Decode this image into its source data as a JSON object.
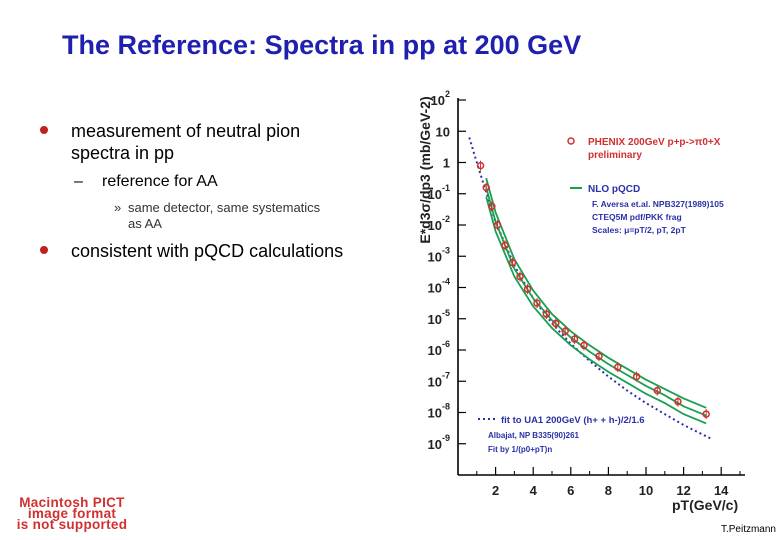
{
  "slide": {
    "title": "The Reference: Spectra in pp at 200 GeV",
    "bullets": [
      {
        "text_line1": "measurement of neutral pion",
        "text_line2": "spectra in pp",
        "sub": {
          "dash": "–",
          "text": "reference for AA",
          "subsub": {
            "marker": "»",
            "line1": "same detector, same systematics",
            "line2": "as AA"
          }
        }
      },
      {
        "text": "consistent with pQCD calculations"
      }
    ],
    "pict_warning": [
      "Macintosh PICT",
      "image format",
      "is not supported"
    ],
    "credit": "T.Peitzmann"
  },
  "chart_data": {
    "type": "scatter",
    "xlabel": "pT(GeV/c)",
    "ylabel": "E*d3σ/dp3 (mb/GeV-2)",
    "xlim": [
      0,
      15
    ],
    "ylim_log10": [
      -10,
      2
    ],
    "x_ticks": [
      "2",
      "4",
      "6",
      "8",
      "10",
      "12",
      "14"
    ],
    "y_tick_exponents": [
      "2",
      "",
      "",
      "-1",
      "-2",
      "-3",
      "-4",
      "-5",
      "-6",
      "-7",
      "-8",
      "-9"
    ],
    "legend": {
      "data": "PHENIX 200GeV p+p->π0+X",
      "data_sub": "preliminary",
      "nlo": "NLO pQCD",
      "nlo_ref": "F. Aversa et.al. NPB327(1989)105",
      "nlo_pdf": "CTEQ5M pdf/PKK frag",
      "nlo_scales": "Scales: μ=pT/2, pT, 2pT",
      "fit": "fit to UA1 200GeV (h+ + h-)/2/1.6",
      "fit_ref": "Albajat, NP B335(90)261",
      "fit_form": "Fit by 1/(p0+pT)n"
    },
    "series": [
      {
        "name": "PHENIX 200GeV p+p->π0+X",
        "x": [
          1.2,
          1.5,
          1.8,
          2.1,
          2.5,
          2.9,
          3.3,
          3.7,
          4.2,
          4.7,
          5.2,
          5.7,
          6.2,
          6.7,
          7.5,
          8.5,
          9.5,
          10.6,
          11.7,
          13.2
        ],
        "log10y": [
          -0.1,
          -0.8,
          -1.4,
          -2.0,
          -2.65,
          -3.2,
          -3.65,
          -4.05,
          -4.5,
          -4.85,
          -5.15,
          -5.4,
          -5.65,
          -5.85,
          -6.2,
          -6.55,
          -6.85,
          -7.3,
          -7.65,
          -8.05
        ]
      },
      {
        "name": "NLO pQCD",
        "x": [
          1.5,
          2.0,
          3.0,
          4.0,
          5.0,
          6.0,
          7.0,
          8.0,
          9.0,
          10.0,
          11.0,
          12.0,
          13.2
        ],
        "log10y_bands": [
          [
            -0.5,
            -1.6,
            -3.1,
            -4.1,
            -4.85,
            -5.4,
            -5.85,
            -6.25,
            -6.6,
            -6.95,
            -7.25,
            -7.55,
            -7.85
          ],
          [
            -0.8,
            -1.9,
            -3.4,
            -4.35,
            -5.05,
            -5.6,
            -6.05,
            -6.45,
            -6.8,
            -7.15,
            -7.45,
            -7.8,
            -8.1
          ],
          [
            -1.1,
            -2.2,
            -3.65,
            -4.6,
            -5.3,
            -5.85,
            -6.3,
            -6.7,
            -7.05,
            -7.4,
            -7.7,
            -8.05,
            -8.35
          ]
        ]
      },
      {
        "name": "fit to UA1 200GeV",
        "x": [
          0.6,
          1.0,
          1.5,
          2.0,
          3.0,
          4.0,
          5.0,
          6.0,
          7.0,
          8.0,
          9.0,
          10.0,
          11.0,
          12.0,
          13.5
        ],
        "log10y": [
          0.8,
          0.0,
          -0.95,
          -1.9,
          -3.3,
          -4.35,
          -5.15,
          -5.8,
          -6.35,
          -6.85,
          -7.3,
          -7.7,
          -8.05,
          -8.4,
          -8.85
        ]
      }
    ],
    "colors": {
      "data": "#d03030",
      "nlo": "#18a050",
      "fit": "#2a30a8",
      "text": "#2a30a8"
    }
  }
}
